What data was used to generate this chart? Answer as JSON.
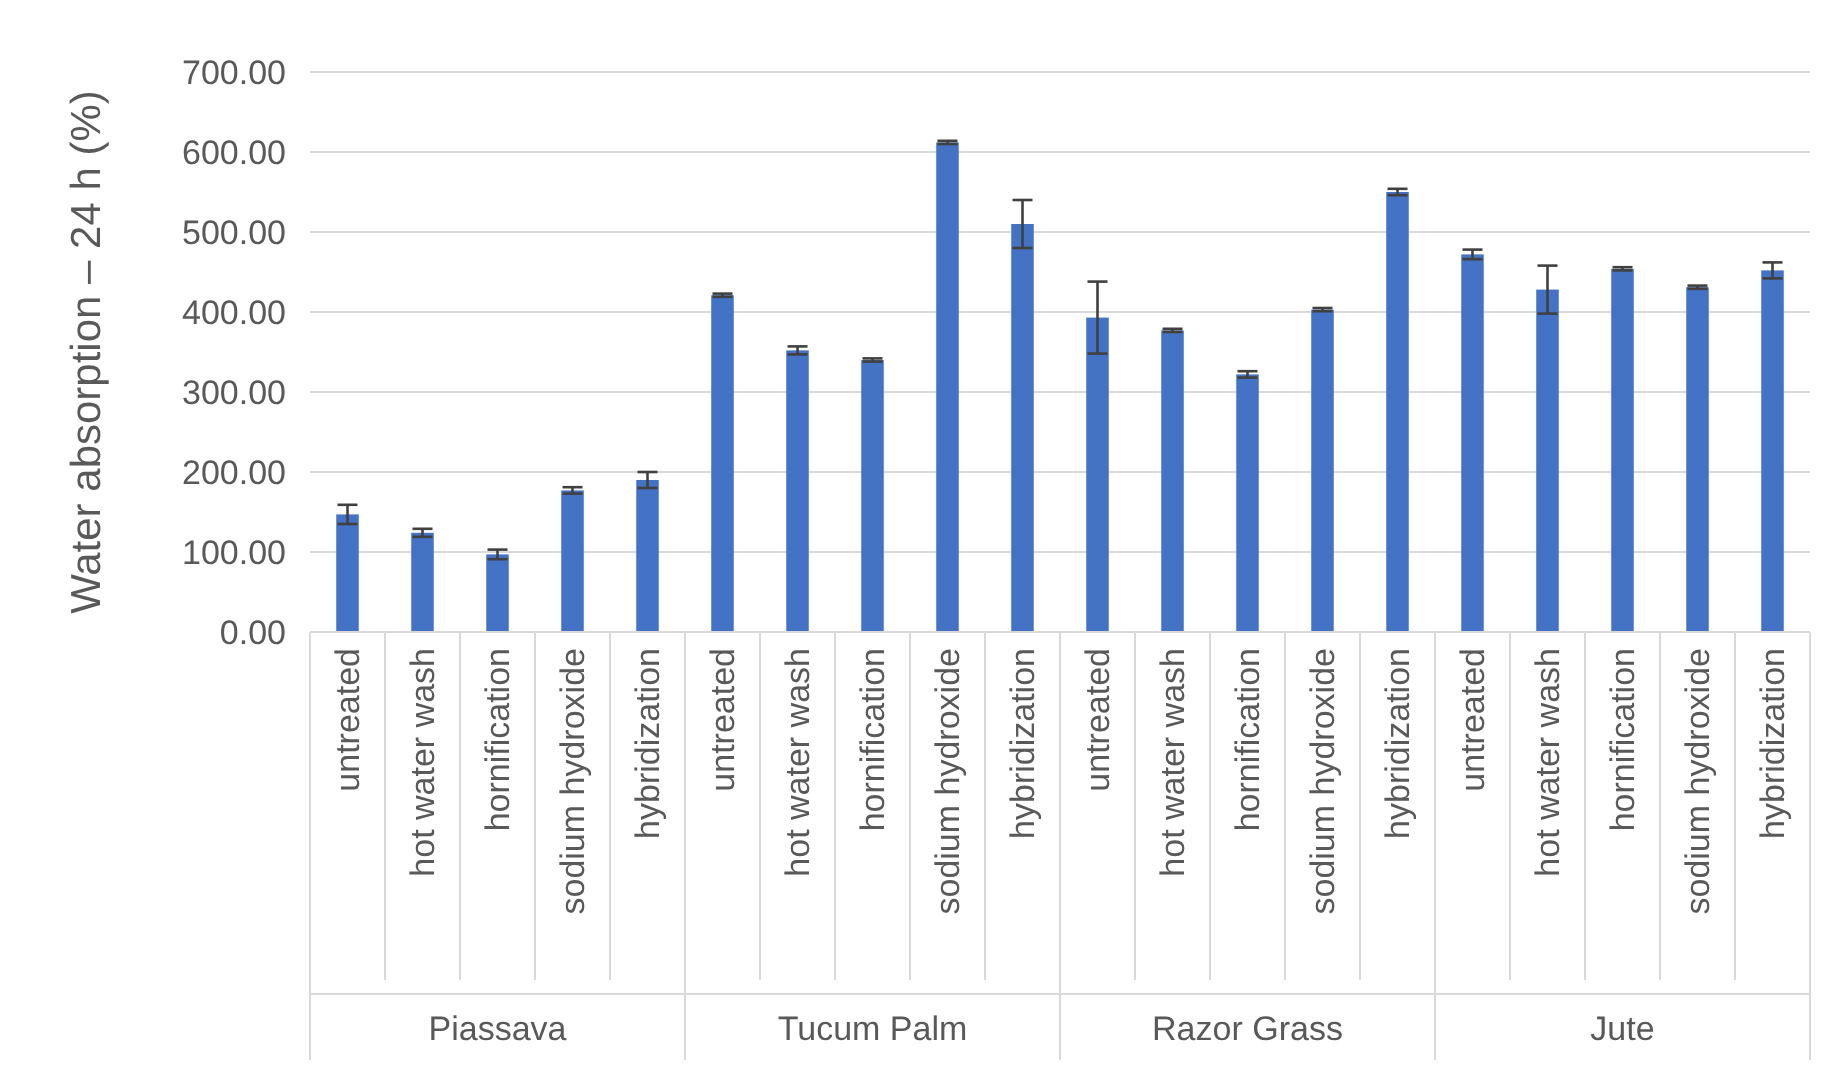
{
  "chart_data": {
    "type": "bar",
    "ylabel": "Water absorption – 24 h (%)",
    "categories": [
      "untreated",
      "hot water wash",
      "hornification",
      "sodium hydroxide",
      "hybridization",
      "untreated",
      "hot water wash",
      "hornification",
      "sodium hydroxide",
      "hybridization",
      "untreated",
      "hot water wash",
      "hornification",
      "sodium hydroxide",
      "hybridization",
      "untreated",
      "hot water wash",
      "hornification",
      "sodium hydroxide",
      "hybridization"
    ],
    "values": [
      147,
      124,
      97,
      177,
      190,
      421,
      352,
      340,
      612,
      510,
      393,
      377,
      322,
      403,
      550,
      472,
      428,
      454,
      431,
      452
    ],
    "errors": [
      12,
      5,
      6,
      4,
      10,
      2,
      5,
      2,
      2,
      30,
      45,
      2,
      4,
      2,
      4,
      6,
      30,
      2,
      2,
      10
    ],
    "color": "#4472c4",
    "ylim": [
      0,
      700
    ],
    "yticks": [
      {
        "value": 0,
        "label": "0.00"
      },
      {
        "value": 100,
        "label": "100.00"
      },
      {
        "value": 200,
        "label": "200.00"
      },
      {
        "value": 300,
        "label": "300.00"
      },
      {
        "value": 400,
        "label": "400.00"
      },
      {
        "value": 500,
        "label": "500.00"
      },
      {
        "value": 600,
        "label": "600.00"
      },
      {
        "value": 700,
        "label": "700.00"
      }
    ],
    "grid": "y",
    "annotations": [
      "Piassava",
      "Tucum Palm",
      "Razor Grass",
      "Jute"
    ]
  }
}
